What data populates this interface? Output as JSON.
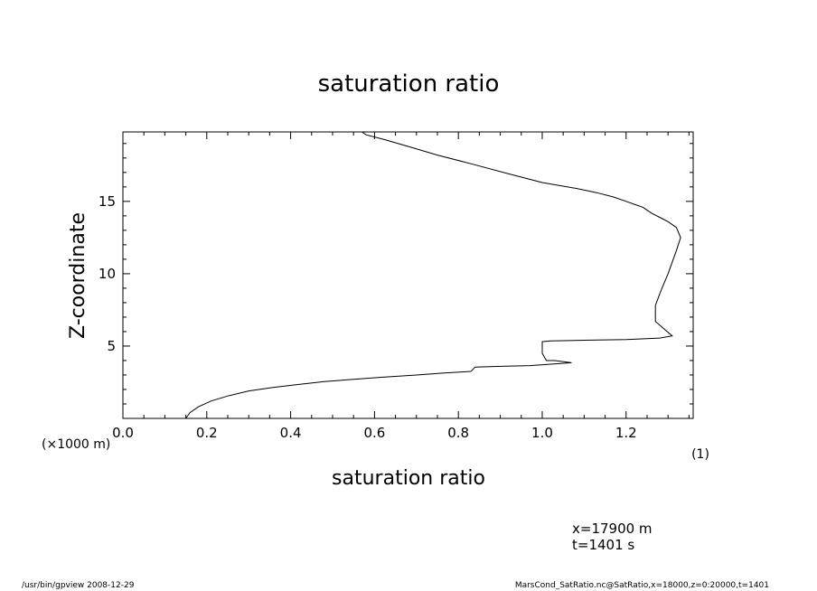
{
  "chart_data": {
    "type": "line",
    "title": "saturation ratio",
    "xlabel": "saturation ratio",
    "ylabel": "Z-coordinate",
    "y_unit_label": "(×1000 m)",
    "x_unit_label": "(1)",
    "xlim": [
      0.0,
      1.36
    ],
    "ylim": [
      0,
      19.8
    ],
    "x_ticks": [
      0.0,
      0.2,
      0.4,
      0.6,
      0.8,
      1.0,
      1.2
    ],
    "x_tick_labels": [
      "0.0",
      "0.2",
      "0.4",
      "0.6",
      "0.8",
      "1.0",
      "1.2"
    ],
    "y_ticks": [
      5,
      10,
      15
    ],
    "y_tick_labels": [
      "5",
      "10",
      "15"
    ],
    "grid": false,
    "series": [
      {
        "x": [
          0.15,
          0.16,
          0.18,
          0.21,
          0.25,
          0.3,
          0.36,
          0.42,
          0.48,
          0.55,
          0.62,
          0.7,
          0.77,
          0.83,
          0.84,
          0.9,
          0.97,
          1.02,
          1.07,
          1.03,
          1.01,
          1.0,
          1.0,
          1.02,
          1.1,
          1.2,
          1.28,
          1.31,
          1.29,
          1.27,
          1.27,
          1.27,
          1.28,
          1.29,
          1.3,
          1.31,
          1.32,
          1.33,
          1.32,
          1.3,
          1.28,
          1.26,
          1.24,
          1.22,
          1.2,
          1.17,
          1.13,
          1.08,
          1.0,
          0.92,
          0.83,
          0.75,
          0.68,
          0.62,
          0.58,
          0.57
        ],
        "y": [
          0.0,
          0.4,
          0.8,
          1.2,
          1.55,
          1.9,
          2.15,
          2.35,
          2.55,
          2.7,
          2.85,
          3.0,
          3.15,
          3.25,
          3.55,
          3.6,
          3.65,
          3.75,
          3.85,
          4.0,
          4.0,
          4.5,
          5.3,
          5.35,
          5.4,
          5.45,
          5.55,
          5.7,
          6.2,
          6.7,
          7.2,
          7.8,
          8.6,
          9.3,
          10.0,
          10.8,
          11.6,
          12.5,
          13.2,
          13.6,
          13.9,
          14.2,
          14.6,
          14.8,
          15.0,
          15.3,
          15.6,
          15.9,
          16.3,
          16.9,
          17.6,
          18.2,
          18.8,
          19.3,
          19.6,
          19.8
        ]
      }
    ]
  },
  "info": {
    "line1": "x=17900 m",
    "line2": "t=1401 s"
  },
  "footer": {
    "left": "/usr/bin/gpview  2008-12-29",
    "right": "MarsCond_SatRatio.nc@SatRatio,x=18000,z=0:20000,t=1401"
  }
}
